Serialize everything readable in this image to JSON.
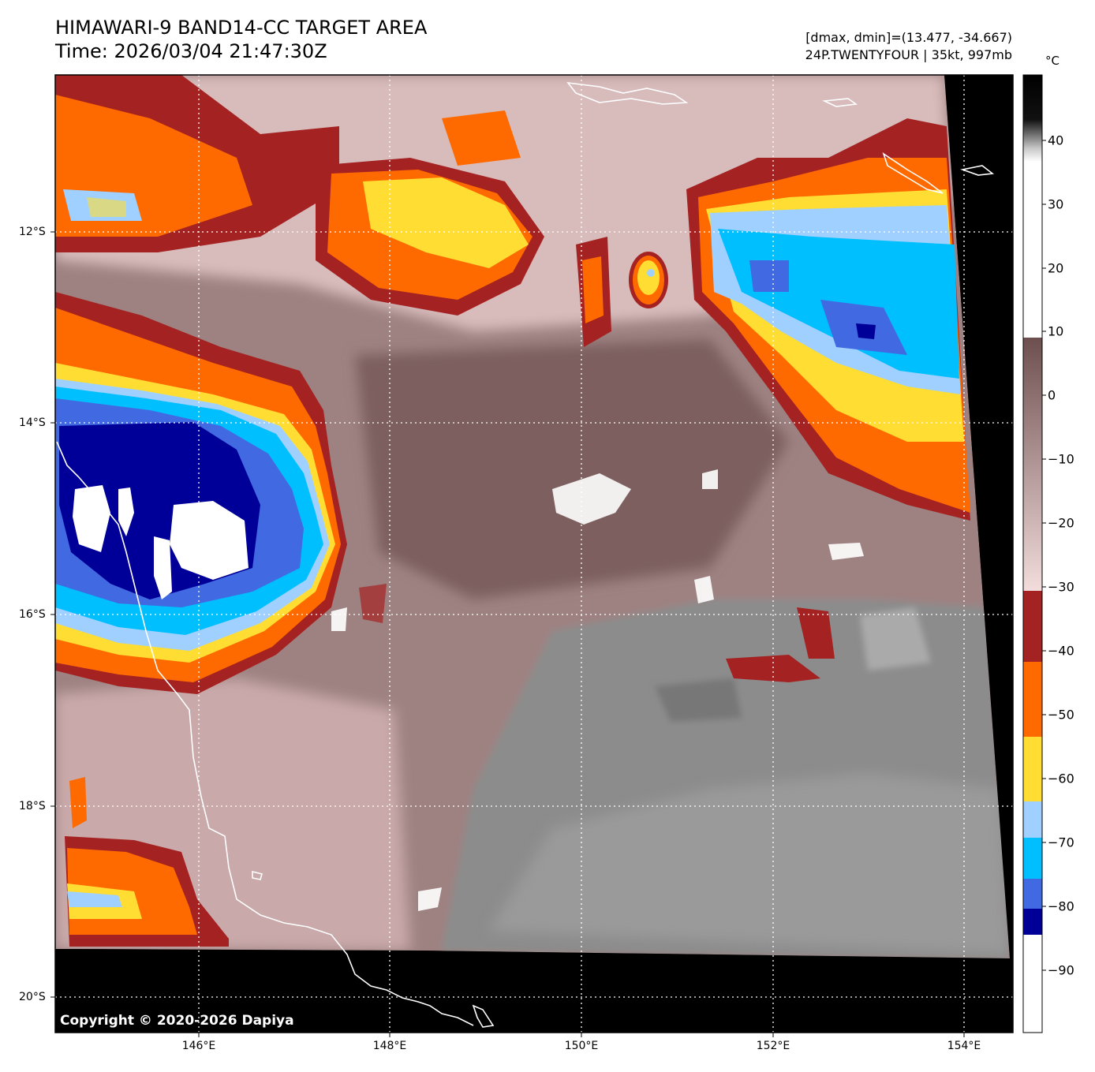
{
  "header": {
    "title": "HIMAWARI-9 BAND14-CC TARGET AREA",
    "time": "Time: 2026/03/04 21:47:30Z",
    "dmax_dmin": "[dmax, dmin]=(13.477, -34.667)",
    "storm": "24P.TWENTYFOUR | 35kt, 997mb"
  },
  "map": {
    "lat_labels": [
      "12°S",
      "14°S",
      "16°S",
      "18°S",
      "20°S"
    ],
    "lon_labels": [
      "146°E",
      "148°E",
      "150°E",
      "152°E",
      "154°E"
    ],
    "copyright": "Copyright © 2020-2026 Dapiya"
  },
  "colorbar": {
    "unit": "°C",
    "ticks": [
      "40",
      "30",
      "20",
      "10",
      "0",
      "−10",
      "−20",
      "−30",
      "−40",
      "−50",
      "−60",
      "−70",
      "−80",
      "−90"
    ],
    "colors": {
      "white": "#ffffff",
      "navy": "#000099",
      "royal_blue": "#4169e1",
      "deep_sky": "#00bfff",
      "light_blue": "#a0d0ff",
      "yellow": "#ffdd33",
      "orange": "#ff6a00",
      "dark_red": "#a52222",
      "pink": "#f0d8d8",
      "brown": "#7a5858",
      "grey": "#8a8a8a",
      "black": "#000000"
    }
  }
}
